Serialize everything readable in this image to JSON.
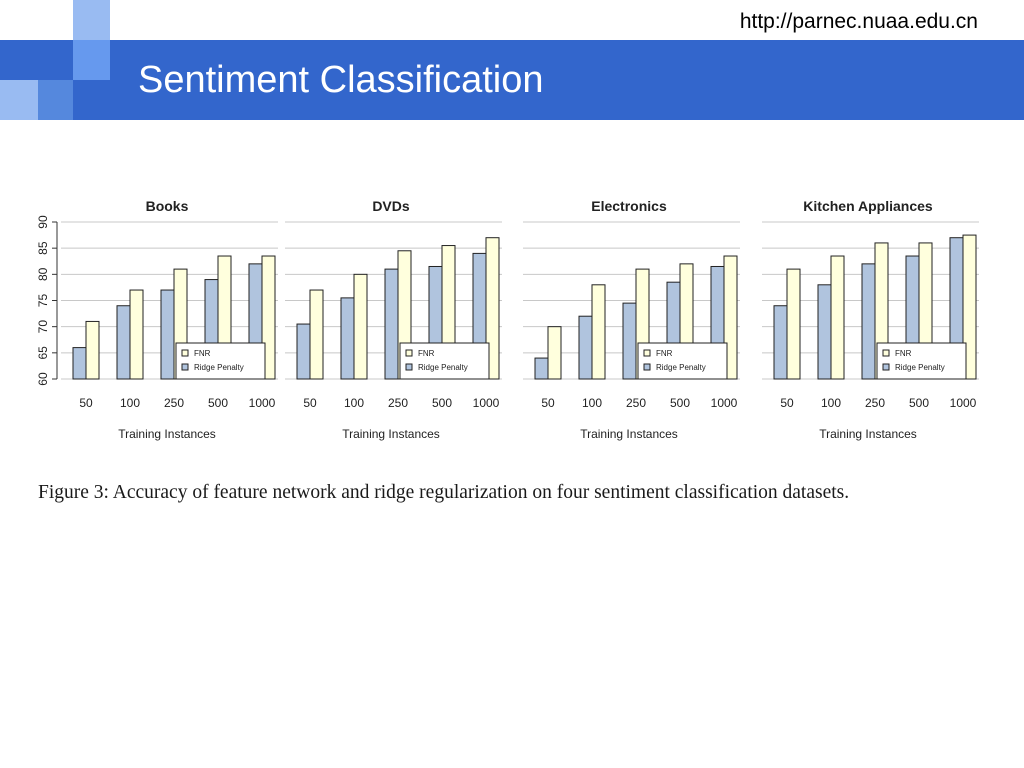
{
  "header": {
    "title": "Sentiment Classification",
    "url": "http://parnec.nuaa.edu.cn"
  },
  "colors": {
    "banner": "#3366cc",
    "deco_light": "#99bbf2",
    "deco_mid": "#5588dd",
    "fnr": "#ffffdd",
    "ridge": "#b0c4de",
    "grid": "#c8c8c8"
  },
  "caption": "Figure 3: Accuracy of feature network and ridge regularization on four sentiment classification datasets.",
  "chart_data": [
    {
      "type": "bar",
      "title": "Books",
      "categories": [
        "50",
        "100",
        "250",
        "500",
        "1000"
      ],
      "xlabel": "Training Instances",
      "ylabel": "",
      "ylim": [
        60,
        90
      ],
      "yticks": [
        "60",
        "65",
        "70",
        "75",
        "80",
        "85",
        "90"
      ],
      "grid": true,
      "legend_position": "bottom-right",
      "series": [
        {
          "name": "Ridge Penalty",
          "values": [
            66,
            74,
            77,
            79,
            82
          ]
        },
        {
          "name": "FNR",
          "values": [
            71,
            77,
            81,
            83.5,
            83.5
          ]
        }
      ]
    },
    {
      "type": "bar",
      "title": "DVDs",
      "categories": [
        "50",
        "100",
        "250",
        "500",
        "1000"
      ],
      "xlabel": "Training Instances",
      "ylabel": "",
      "ylim": [
        60,
        90
      ],
      "grid": true,
      "legend_position": "bottom-right",
      "series": [
        {
          "name": "Ridge Penalty",
          "values": [
            70.5,
            75.5,
            81,
            81.5,
            84
          ]
        },
        {
          "name": "FNR",
          "values": [
            77,
            80,
            84.5,
            85.5,
            87
          ]
        }
      ]
    },
    {
      "type": "bar",
      "title": "Electronics",
      "categories": [
        "50",
        "100",
        "250",
        "500",
        "1000"
      ],
      "xlabel": "Training Instances",
      "ylabel": "",
      "ylim": [
        60,
        90
      ],
      "grid": true,
      "legend_position": "bottom-right",
      "series": [
        {
          "name": "Ridge Penalty",
          "values": [
            64,
            72,
            74.5,
            78.5,
            81.5
          ]
        },
        {
          "name": "FNR",
          "values": [
            70,
            78,
            81,
            82,
            83.5
          ]
        }
      ]
    },
    {
      "type": "bar",
      "title": "Kitchen Appliances",
      "categories": [
        "50",
        "100",
        "250",
        "500",
        "1000"
      ],
      "xlabel": "Training Instances",
      "ylabel": "",
      "ylim": [
        60,
        90
      ],
      "grid": true,
      "legend_position": "bottom-right",
      "series": [
        {
          "name": "Ridge Penalty",
          "values": [
            74,
            78,
            82,
            83.5,
            87
          ]
        },
        {
          "name": "FNR",
          "values": [
            81,
            83.5,
            86,
            86,
            87.5
          ]
        }
      ]
    }
  ]
}
